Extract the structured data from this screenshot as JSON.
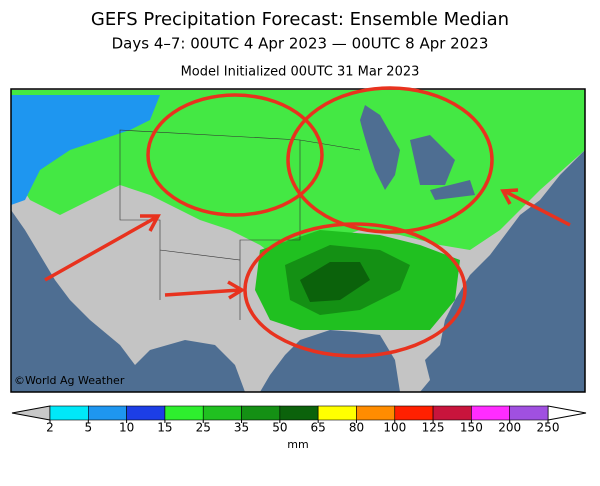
{
  "header": {
    "title": "GEFS Precipitation Forecast: Ensemble Median",
    "subtitle": "Days 4–7: 00UTC 4 Apr 2023 — 00UTC 8 Apr 2023",
    "initialized": "Model Initialized 00UTC 31 Mar 2023"
  },
  "map": {
    "credit": "©World Ag Weather"
  },
  "colorbar": {
    "ticks": [
      2,
      5,
      10,
      15,
      25,
      35,
      50,
      65,
      80,
      100,
      125,
      150,
      200,
      250
    ],
    "colors": [
      "#00e8f8",
      "#1e96f0",
      "#1c3ee6",
      "#2eef2e",
      "#20c020",
      "#149014",
      "#0b620b",
      "#ffff00",
      "#ff8c00",
      "#ff2000",
      "#c8143c",
      "#ff2cff",
      "#a050e0"
    ],
    "under_color": "#c8c8c8",
    "over_color": "#ffffff",
    "unit": "mm"
  }
}
